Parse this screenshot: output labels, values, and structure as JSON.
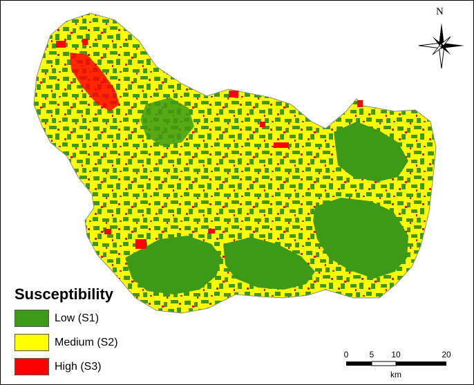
{
  "colors": {
    "low": "#3c9a17",
    "medium": "#ffff00",
    "high": "#ff0000",
    "outline": "#8a8a8a"
  },
  "legend": {
    "title": "Susceptibility",
    "items": [
      {
        "label": "Low (S1)",
        "color": "#3c9a17"
      },
      {
        "label": "Medium (S2)",
        "color": "#ffff00"
      },
      {
        "label": "High (S3)",
        "color": "#ff0000"
      }
    ]
  },
  "north_arrow": {
    "label": "N",
    "icon": "compass-rose-icon"
  },
  "scale_bar": {
    "ticks": [
      "0",
      "5",
      "10",
      "20"
    ],
    "unit": "km"
  }
}
